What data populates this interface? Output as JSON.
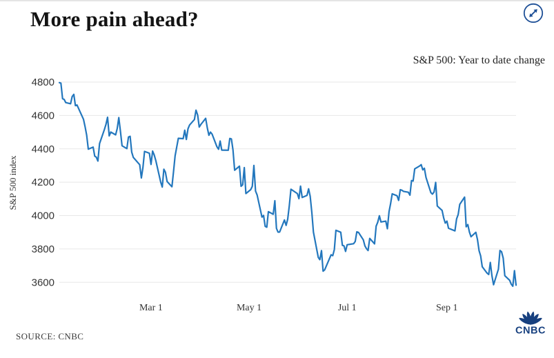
{
  "page": {
    "title": "More pain ahead?",
    "subtitle": "S&P 500: Year to date change",
    "source": "SOURCE: CNBC",
    "brand": "CNBC",
    "colors": {
      "line": "#2377bd",
      "navy": "#1d4f96",
      "logo_navy": "#17407f",
      "grid": "#e7e7e7"
    }
  },
  "chart_data": {
    "type": "line",
    "title": "More pain ahead?",
    "subtitle": "S&P 500: Year to date change",
    "xlabel": "",
    "ylabel": "S&P 500 index",
    "ylim": [
      3600,
      4800
    ],
    "yticks": [
      3600,
      3800,
      4000,
      4200,
      4400,
      4600,
      4800
    ],
    "xticks": [
      {
        "label": "Mar 1",
        "date": "2022-03-01"
      },
      {
        "label": "May 1",
        "date": "2022-05-01"
      },
      {
        "label": "Jul 1",
        "date": "2022-07-01"
      },
      {
        "label": "Sep 1",
        "date": "2022-09-01"
      }
    ],
    "grid": "horizontal",
    "legend": "none",
    "series": [
      {
        "name": "S&P 500 index",
        "color": "#2377bd",
        "points": [
          [
            "2022-01-03",
            4796.56
          ],
          [
            "2022-01-04",
            4793.54
          ],
          [
            "2022-01-05",
            4700.58
          ],
          [
            "2022-01-06",
            4696.05
          ],
          [
            "2022-01-07",
            4677.03
          ],
          [
            "2022-01-10",
            4670.29
          ],
          [
            "2022-01-11",
            4713.07
          ],
          [
            "2022-01-12",
            4726.35
          ],
          [
            "2022-01-13",
            4659.03
          ],
          [
            "2022-01-14",
            4662.85
          ],
          [
            "2022-01-18",
            4577.11
          ],
          [
            "2022-01-19",
            4532.76
          ],
          [
            "2022-01-20",
            4482.73
          ],
          [
            "2022-01-21",
            4397.94
          ],
          [
            "2022-01-24",
            4410.13
          ],
          [
            "2022-01-25",
            4356.45
          ],
          [
            "2022-01-26",
            4349.93
          ],
          [
            "2022-01-27",
            4326.51
          ],
          [
            "2022-01-28",
            4431.85
          ],
          [
            "2022-01-31",
            4515.55
          ],
          [
            "2022-02-01",
            4546.54
          ],
          [
            "2022-02-02",
            4589.38
          ],
          [
            "2022-02-03",
            4477.44
          ],
          [
            "2022-02-04",
            4500.53
          ],
          [
            "2022-02-07",
            4483.87
          ],
          [
            "2022-02-08",
            4521.54
          ],
          [
            "2022-02-09",
            4587.18
          ],
          [
            "2022-02-10",
            4504.08
          ],
          [
            "2022-02-11",
            4418.64
          ],
          [
            "2022-02-14",
            4401.67
          ],
          [
            "2022-02-15",
            4471.07
          ],
          [
            "2022-02-16",
            4475.01
          ],
          [
            "2022-02-17",
            4380.26
          ],
          [
            "2022-02-18",
            4348.87
          ],
          [
            "2022-02-22",
            4304.76
          ],
          [
            "2022-02-23",
            4225.5
          ],
          [
            "2022-02-24",
            4288.7
          ],
          [
            "2022-02-25",
            4384.65
          ],
          [
            "2022-02-28",
            4373.94
          ],
          [
            "2022-03-01",
            4306.26
          ],
          [
            "2022-03-02",
            4386.54
          ],
          [
            "2022-03-03",
            4363.49
          ],
          [
            "2022-03-04",
            4328.87
          ],
          [
            "2022-03-07",
            4201.09
          ],
          [
            "2022-03-08",
            4170.7
          ],
          [
            "2022-03-09",
            4277.88
          ],
          [
            "2022-03-10",
            4259.52
          ],
          [
            "2022-03-11",
            4204.31
          ],
          [
            "2022-03-14",
            4173.11
          ],
          [
            "2022-03-15",
            4262.45
          ],
          [
            "2022-03-16",
            4357.86
          ],
          [
            "2022-03-17",
            4411.67
          ],
          [
            "2022-03-18",
            4463.12
          ],
          [
            "2022-03-21",
            4461.18
          ],
          [
            "2022-03-22",
            4511.61
          ],
          [
            "2022-03-23",
            4456.24
          ],
          [
            "2022-03-24",
            4520.16
          ],
          [
            "2022-03-25",
            4543.06
          ],
          [
            "2022-03-28",
            4575.52
          ],
          [
            "2022-03-29",
            4631.6
          ],
          [
            "2022-03-30",
            4602.45
          ],
          [
            "2022-03-31",
            4530.41
          ],
          [
            "2022-04-01",
            4545.86
          ],
          [
            "2022-04-04",
            4582.64
          ],
          [
            "2022-04-05",
            4525.12
          ],
          [
            "2022-04-06",
            4481.15
          ],
          [
            "2022-04-07",
            4500.21
          ],
          [
            "2022-04-08",
            4488.28
          ],
          [
            "2022-04-11",
            4412.53
          ],
          [
            "2022-04-12",
            4397.45
          ],
          [
            "2022-04-13",
            4446.59
          ],
          [
            "2022-04-14",
            4392.59
          ],
          [
            "2022-04-18",
            4391.69
          ],
          [
            "2022-04-19",
            4462.21
          ],
          [
            "2022-04-20",
            4459.45
          ],
          [
            "2022-04-21",
            4393.66
          ],
          [
            "2022-04-22",
            4271.78
          ],
          [
            "2022-04-25",
            4296.12
          ],
          [
            "2022-04-26",
            4175.2
          ],
          [
            "2022-04-27",
            4183.96
          ],
          [
            "2022-04-28",
            4287.5
          ],
          [
            "2022-04-29",
            4131.93
          ],
          [
            "2022-05-02",
            4155.38
          ],
          [
            "2022-05-03",
            4175.48
          ],
          [
            "2022-05-04",
            4300.17
          ],
          [
            "2022-05-05",
            4146.87
          ],
          [
            "2022-05-06",
            4123.34
          ],
          [
            "2022-05-09",
            3991.24
          ],
          [
            "2022-05-10",
            4001.05
          ],
          [
            "2022-05-11",
            3935.18
          ],
          [
            "2022-05-12",
            3930.08
          ],
          [
            "2022-05-13",
            4023.89
          ],
          [
            "2022-05-16",
            4008.01
          ],
          [
            "2022-05-17",
            4088.85
          ],
          [
            "2022-05-18",
            3923.68
          ],
          [
            "2022-05-19",
            3900.79
          ],
          [
            "2022-05-20",
            3901.36
          ],
          [
            "2022-05-23",
            3973.75
          ],
          [
            "2022-05-24",
            3941.48
          ],
          [
            "2022-05-25",
            3978.73
          ],
          [
            "2022-05-26",
            4057.84
          ],
          [
            "2022-05-27",
            4158.24
          ],
          [
            "2022-05-31",
            4132.15
          ],
          [
            "2022-06-01",
            4101.23
          ],
          [
            "2022-06-02",
            4176.82
          ],
          [
            "2022-06-03",
            4108.54
          ],
          [
            "2022-06-06",
            4121.43
          ],
          [
            "2022-06-07",
            4160.68
          ],
          [
            "2022-06-08",
            4115.77
          ],
          [
            "2022-06-09",
            4017.82
          ],
          [
            "2022-06-10",
            3900.86
          ],
          [
            "2022-06-13",
            3749.63
          ],
          [
            "2022-06-14",
            3735.48
          ],
          [
            "2022-06-15",
            3789.99
          ],
          [
            "2022-06-16",
            3666.77
          ],
          [
            "2022-06-17",
            3674.84
          ],
          [
            "2022-06-21",
            3764.79
          ],
          [
            "2022-06-22",
            3759.89
          ],
          [
            "2022-06-23",
            3795.73
          ],
          [
            "2022-06-24",
            3911.74
          ],
          [
            "2022-06-27",
            3900.11
          ],
          [
            "2022-06-28",
            3821.55
          ],
          [
            "2022-06-29",
            3818.83
          ],
          [
            "2022-06-30",
            3785.38
          ],
          [
            "2022-07-01",
            3825.33
          ],
          [
            "2022-07-05",
            3831.39
          ],
          [
            "2022-07-06",
            3845.08
          ],
          [
            "2022-07-07",
            3902.62
          ],
          [
            "2022-07-08",
            3899.38
          ],
          [
            "2022-07-11",
            3854.43
          ],
          [
            "2022-07-12",
            3818.8
          ],
          [
            "2022-07-13",
            3801.78
          ],
          [
            "2022-07-14",
            3790.38
          ],
          [
            "2022-07-15",
            3863.16
          ],
          [
            "2022-07-18",
            3830.85
          ],
          [
            "2022-07-19",
            3936.69
          ],
          [
            "2022-07-20",
            3959.9
          ],
          [
            "2022-07-21",
            3998.95
          ],
          [
            "2022-07-22",
            3961.63
          ],
          [
            "2022-07-25",
            3966.84
          ],
          [
            "2022-07-26",
            3921.05
          ],
          [
            "2022-07-27",
            4023.61
          ],
          [
            "2022-07-28",
            4072.43
          ],
          [
            "2022-07-29",
            4130.29
          ],
          [
            "2022-08-01",
            4118.63
          ],
          [
            "2022-08-02",
            4091.19
          ],
          [
            "2022-08-03",
            4155.17
          ],
          [
            "2022-08-04",
            4151.94
          ],
          [
            "2022-08-05",
            4145.19
          ],
          [
            "2022-08-08",
            4140.06
          ],
          [
            "2022-08-09",
            4122.47
          ],
          [
            "2022-08-10",
            4210.24
          ],
          [
            "2022-08-11",
            4207.27
          ],
          [
            "2022-08-12",
            4280.15
          ],
          [
            "2022-08-15",
            4297.14
          ],
          [
            "2022-08-16",
            4305.2
          ],
          [
            "2022-08-17",
            4274.04
          ],
          [
            "2022-08-18",
            4283.74
          ],
          [
            "2022-08-19",
            4228.48
          ],
          [
            "2022-08-22",
            4137.99
          ],
          [
            "2022-08-23",
            4128.73
          ],
          [
            "2022-08-24",
            4140.77
          ],
          [
            "2022-08-25",
            4199.12
          ],
          [
            "2022-08-26",
            4057.66
          ],
          [
            "2022-08-29",
            4030.61
          ],
          [
            "2022-08-30",
            3986.16
          ],
          [
            "2022-08-31",
            3955.0
          ],
          [
            "2022-09-01",
            3966.85
          ],
          [
            "2022-09-02",
            3924.26
          ],
          [
            "2022-09-06",
            3908.19
          ],
          [
            "2022-09-07",
            3979.87
          ],
          [
            "2022-09-08",
            4006.18
          ],
          [
            "2022-09-09",
            4067.36
          ],
          [
            "2022-09-12",
            4110.41
          ],
          [
            "2022-09-13",
            3932.69
          ],
          [
            "2022-09-14",
            3946.01
          ],
          [
            "2022-09-15",
            3901.35
          ],
          [
            "2022-09-16",
            3873.33
          ],
          [
            "2022-09-19",
            3899.89
          ],
          [
            "2022-09-20",
            3855.93
          ],
          [
            "2022-09-21",
            3789.93
          ],
          [
            "2022-09-22",
            3757.99
          ],
          [
            "2022-09-23",
            3693.23
          ],
          [
            "2022-09-26",
            3655.04
          ],
          [
            "2022-09-27",
            3647.29
          ],
          [
            "2022-09-28",
            3719.04
          ],
          [
            "2022-09-29",
            3640.47
          ],
          [
            "2022-09-30",
            3585.62
          ],
          [
            "2022-10-03",
            3678.43
          ],
          [
            "2022-10-04",
            3790.93
          ],
          [
            "2022-10-05",
            3783.28
          ],
          [
            "2022-10-06",
            3744.52
          ],
          [
            "2022-10-07",
            3639.66
          ],
          [
            "2022-10-10",
            3612.39
          ],
          [
            "2022-10-11",
            3588.84
          ],
          [
            "2022-10-12",
            3577.03
          ],
          [
            "2022-10-13",
            3669.91
          ],
          [
            "2022-10-14",
            3583.07
          ]
        ]
      }
    ]
  }
}
